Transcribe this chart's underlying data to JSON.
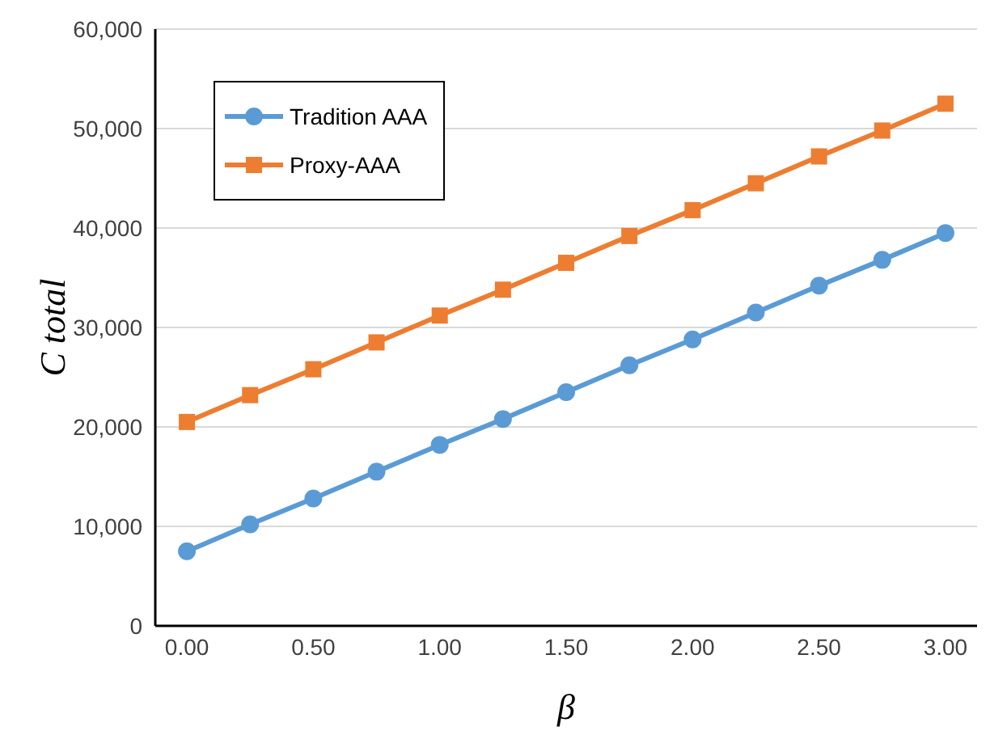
{
  "chart_data": {
    "type": "line",
    "xlabel": "β",
    "ylabel": "C total",
    "x": [
      0,
      0.25,
      0.5,
      0.75,
      1,
      1.25,
      1.5,
      1.75,
      2,
      2.25,
      2.5,
      2.75,
      3
    ],
    "series": [
      {
        "name": "Tradition AAA",
        "color": "#5b9bd5",
        "marker": "circle",
        "values": [
          7500,
          10200,
          12800,
          15500,
          18200,
          20800,
          23500,
          26200,
          28800,
          31500,
          34200,
          36800,
          39500
        ]
      },
      {
        "name": "Proxy-AAA",
        "color": "#ed7d31",
        "marker": "square",
        "values": [
          20500,
          23200,
          25800,
          28500,
          31200,
          33800,
          36500,
          39200,
          41800,
          44500,
          47200,
          49800,
          52500
        ]
      }
    ],
    "xlim": [
      -0.125,
      3.125
    ],
    "xticks": [
      {
        "value": 0,
        "label": "0.00"
      },
      {
        "value": 0.5,
        "label": "0.50"
      },
      {
        "value": 1,
        "label": "1.00"
      },
      {
        "value": 1.5,
        "label": "1.50"
      },
      {
        "value": 2,
        "label": "2.00"
      },
      {
        "value": 2.5,
        "label": "2.50"
      },
      {
        "value": 3,
        "label": "3.00"
      }
    ],
    "ylim": [
      0,
      60000
    ],
    "yticks": [
      0,
      {
        "value": 10000,
        "label": "10,000"
      },
      {
        "value": 20000,
        "label": "20,000"
      },
      {
        "value": 30000,
        "label": "30,000"
      },
      {
        "value": 40000,
        "label": "40,000"
      },
      {
        "value": 50000,
        "label": "50,000"
      },
      {
        "value": 60000,
        "label": "60,000"
      }
    ],
    "grid": "y",
    "legend": "top left",
    "line_style": "solid"
  }
}
